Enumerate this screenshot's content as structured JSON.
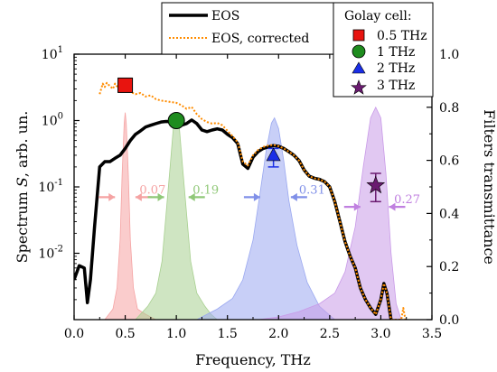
{
  "chart_data": {
    "type": "line",
    "xlabel": "Frequency, THz",
    "ylabel_left": "Spectrum S, arb. un.",
    "ylabel_left_prefix": "Spectrum ",
    "ylabel_left_symbol": "S",
    "ylabel_left_suffix": ", arb. un.",
    "ylabel_right": "Filters transmittance",
    "xlim": [
      0.0,
      3.5
    ],
    "xticks": [
      0.0,
      0.5,
      1.0,
      1.5,
      2.0,
      2.5,
      3.0,
      3.5
    ],
    "xtick_labels": [
      "0.0",
      "0.5",
      "1.0",
      "1.5",
      "2.0",
      "2.5",
      "3.0",
      "3.5"
    ],
    "yscale_left": "log",
    "ylim_left": [
      0.001,
      10
    ],
    "yticks_left_exponents": [
      -2,
      -1,
      0,
      1
    ],
    "ylim_right": [
      0.0,
      1.0
    ],
    "yticks_right": [
      0.0,
      0.2,
      0.4,
      0.6,
      0.8,
      1.0
    ],
    "ytick_labels_right": [
      "0.0",
      "0.2",
      "0.4",
      "0.6",
      "0.8",
      "1.0"
    ],
    "legend_main": [
      {
        "label": "EOS",
        "color": "#000000",
        "style": "solid"
      },
      {
        "label": "EOS, corrected",
        "color": "#ff8c00",
        "style": "dotted"
      }
    ],
    "legend_golay_title": "Golay cell:",
    "legend_golay": [
      {
        "label": "0.5 THz",
        "marker": "square",
        "color": "#e8140f"
      },
      {
        "label": "1 THz",
        "marker": "circle",
        "color": "#1e8c1e"
      },
      {
        "label": "2 THz",
        "marker": "triangle",
        "color": "#1a2ee6"
      },
      {
        "label": "3 THz",
        "marker": "star",
        "color": "#6a1a70"
      }
    ],
    "series": [
      {
        "name": "EOS",
        "color": "#000000",
        "x": [
          0.0,
          0.05,
          0.1,
          0.13,
          0.16,
          0.2,
          0.25,
          0.3,
          0.35,
          0.4,
          0.45,
          0.5,
          0.55,
          0.6,
          0.65,
          0.7,
          0.75,
          0.8,
          0.85,
          0.9,
          0.95,
          1.0,
          1.05,
          1.1,
          1.15,
          1.2,
          1.25,
          1.3,
          1.35,
          1.4,
          1.45,
          1.5,
          1.55,
          1.6,
          1.65,
          1.7,
          1.75,
          1.8,
          1.85,
          1.9,
          1.95,
          2.0,
          2.05,
          2.1,
          2.15,
          2.2,
          2.25,
          2.3,
          2.35,
          2.4,
          2.45,
          2.5,
          2.55,
          2.6,
          2.65,
          2.7,
          2.75,
          2.8,
          2.85,
          2.9,
          2.95,
          3.0,
          3.03,
          3.06,
          3.1
        ],
        "y": [
          0.004,
          0.0065,
          0.006,
          0.0018,
          0.004,
          0.025,
          0.2,
          0.24,
          0.24,
          0.27,
          0.3,
          0.38,
          0.5,
          0.62,
          0.7,
          0.8,
          0.85,
          0.9,
          0.95,
          0.97,
          0.96,
          0.92,
          0.85,
          0.9,
          1.02,
          0.9,
          0.72,
          0.68,
          0.72,
          0.75,
          0.72,
          0.62,
          0.55,
          0.45,
          0.22,
          0.19,
          0.28,
          0.34,
          0.38,
          0.4,
          0.42,
          0.41,
          0.38,
          0.34,
          0.3,
          0.25,
          0.18,
          0.145,
          0.135,
          0.13,
          0.12,
          0.1,
          0.06,
          0.03,
          0.015,
          0.009,
          0.006,
          0.003,
          0.002,
          0.0015,
          0.0012,
          0.002,
          0.0035,
          0.0025,
          0.001
        ]
      },
      {
        "name": "EOS, corrected",
        "color": "#ff8c00",
        "x": [
          0.25,
          0.28,
          0.3,
          0.32,
          0.35,
          0.38,
          0.4,
          0.43,
          0.45,
          0.48,
          0.5,
          0.55,
          0.6,
          0.65,
          0.7,
          0.75,
          0.8,
          0.85,
          0.9,
          0.95,
          1.0,
          1.05,
          1.1,
          1.15,
          1.2,
          1.25,
          1.3,
          1.35,
          1.4,
          1.45,
          1.5,
          1.55,
          1.6,
          1.65,
          1.7,
          1.75,
          1.8,
          1.85,
          1.9,
          1.95,
          2.0,
          2.05,
          2.1,
          2.15,
          2.2,
          2.25,
          2.3,
          2.35,
          2.4,
          2.45,
          2.5,
          2.55,
          2.6,
          2.65,
          2.7,
          2.75,
          2.8,
          2.85,
          2.9,
          2.95,
          3.0,
          3.03,
          3.06,
          3.1,
          3.2,
          3.22,
          3.24
        ],
        "y": [
          2.5,
          3.6,
          3.2,
          3.7,
          3.3,
          3.0,
          3.6,
          3.1,
          3.4,
          3.0,
          3.1,
          2.7,
          2.5,
          2.6,
          2.3,
          2.4,
          2.1,
          2.0,
          1.95,
          1.9,
          1.85,
          1.7,
          1.5,
          1.6,
          1.25,
          1.05,
          0.95,
          0.9,
          0.92,
          0.85,
          0.7,
          0.58,
          0.47,
          0.24,
          0.21,
          0.3,
          0.36,
          0.4,
          0.42,
          0.43,
          0.41,
          0.38,
          0.34,
          0.3,
          0.25,
          0.18,
          0.145,
          0.135,
          0.13,
          0.12,
          0.1,
          0.06,
          0.03,
          0.015,
          0.009,
          0.006,
          0.003,
          0.002,
          0.0015,
          0.0012,
          0.002,
          0.0035,
          0.0025,
          0.001,
          0.001,
          0.0015,
          0.001
        ]
      }
    ],
    "filters": [
      {
        "name": "0.5 THz",
        "color": "#f5a3a3",
        "axis": "right",
        "x": [
          0.3,
          0.38,
          0.42,
          0.45,
          0.47,
          0.49,
          0.5,
          0.51,
          0.53,
          0.55,
          0.58,
          0.62,
          0.7,
          0.8
        ],
        "y": [
          0.0,
          0.04,
          0.12,
          0.3,
          0.55,
          0.74,
          0.78,
          0.74,
          0.55,
          0.3,
          0.12,
          0.04,
          0.02,
          0.0
        ]
      },
      {
        "name": "1 THz",
        "color": "#a8d090",
        "axis": "right",
        "x": [
          0.6,
          0.72,
          0.8,
          0.86,
          0.9,
          0.94,
          0.97,
          1.0,
          1.03,
          1.06,
          1.1,
          1.14,
          1.2,
          1.28,
          1.34,
          1.4
        ],
        "y": [
          0.0,
          0.05,
          0.1,
          0.22,
          0.4,
          0.58,
          0.72,
          0.78,
          0.72,
          0.58,
          0.4,
          0.22,
          0.1,
          0.05,
          0.02,
          0.0
        ]
      },
      {
        "name": "2 THz",
        "color": "#9aa8f0",
        "axis": "right",
        "x": [
          1.2,
          1.4,
          1.55,
          1.65,
          1.75,
          1.82,
          1.88,
          1.93,
          1.96,
          2.0,
          2.05,
          2.1,
          2.18,
          2.28,
          2.4,
          2.55
        ],
        "y": [
          0.0,
          0.04,
          0.08,
          0.15,
          0.3,
          0.48,
          0.64,
          0.74,
          0.76,
          0.72,
          0.6,
          0.45,
          0.28,
          0.14,
          0.05,
          0.0
        ]
      },
      {
        "name": "3 THz",
        "color": "#c99ae8",
        "axis": "right",
        "x": [
          1.8,
          2.0,
          2.2,
          2.4,
          2.55,
          2.65,
          2.75,
          2.83,
          2.9,
          2.95,
          3.0,
          3.05,
          3.1,
          3.15,
          3.2
        ],
        "y": [
          0.0,
          0.01,
          0.03,
          0.06,
          0.1,
          0.18,
          0.35,
          0.58,
          0.76,
          0.8,
          0.76,
          0.55,
          0.25,
          0.06,
          0.0
        ]
      }
    ],
    "golay_points": [
      {
        "name": "0.5 THz",
        "marker": "square",
        "color": "#e8140f",
        "x": 0.5,
        "y": 3.4,
        "yerr_low": 3.4,
        "yerr_high": 3.4
      },
      {
        "name": "1 THz",
        "marker": "circle",
        "color": "#1e8c1e",
        "x": 1.0,
        "y": 1.0,
        "yerr_low": 1.0,
        "yerr_high": 1.0
      },
      {
        "name": "2 THz",
        "marker": "triangle",
        "color": "#1a2ee6",
        "x": 1.95,
        "y": 0.3,
        "yerr_low": 0.2,
        "yerr_high": 0.38
      },
      {
        "name": "3 THz",
        "marker": "star",
        "color": "#6a1a70",
        "x": 2.95,
        "y": 0.105,
        "yerr_low": 0.06,
        "yerr_high": 0.16
      }
    ],
    "fwhm_annotations": [
      {
        "label": "0.07",
        "color": "#f5a3a3",
        "x_left": 0.4,
        "x_right": 0.6,
        "y": 0.07,
        "text_x": 0.64
      },
      {
        "label": "0.19",
        "color": "#90c878",
        "x_left": 0.88,
        "x_right": 1.12,
        "y": 0.07,
        "text_x": 1.16
      },
      {
        "label": "0.31",
        "color": "#8090e8",
        "x_left": 1.82,
        "x_right": 2.12,
        "y": 0.07,
        "text_x": 2.2
      },
      {
        "label": "0.27",
        "color": "#c080e0",
        "x_left": 2.8,
        "x_right": 3.08,
        "y": 0.05,
        "text_x": 3.13
      }
    ]
  }
}
